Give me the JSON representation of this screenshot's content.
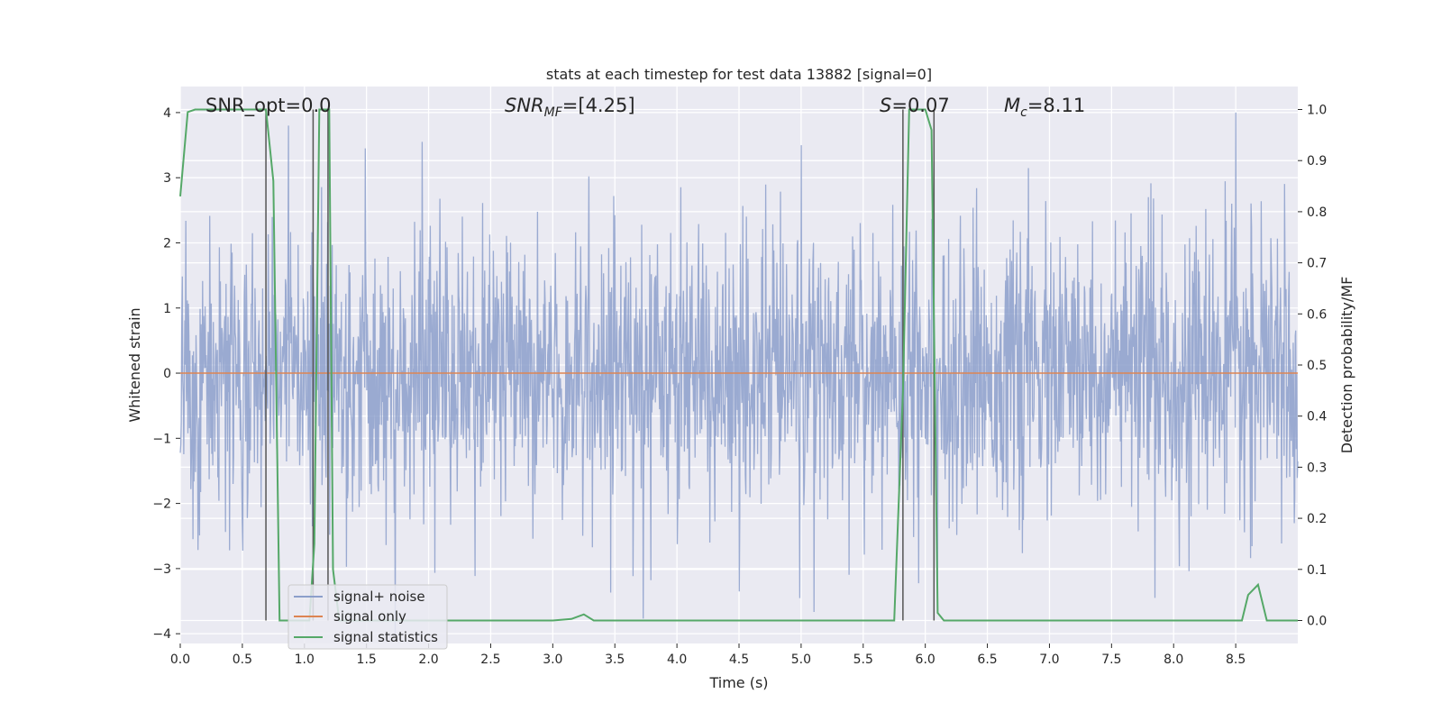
{
  "chart_data": {
    "type": "line",
    "title": "stats at each timestep for test data 13882 [signal=0]",
    "xlabel": "Time (s)",
    "ylabel": "Whitened strain",
    "y2label": "Detection probability/MF",
    "xlim": [
      0.0,
      9.0
    ],
    "ylim": [
      -4.15,
      4.4
    ],
    "y2lim": [
      -0.045,
      1.045
    ],
    "xticks": [
      0.0,
      0.5,
      1.0,
      1.5,
      2.0,
      2.5,
      3.0,
      3.5,
      4.0,
      4.5,
      5.0,
      5.5,
      6.0,
      6.5,
      7.0,
      7.5,
      8.0,
      8.5
    ],
    "xtick_labels": [
      "0.0",
      "0.5",
      "1.0",
      "1.5",
      "2.0",
      "2.5",
      "3.0",
      "3.5",
      "4.0",
      "4.5",
      "5.0",
      "5.5",
      "6.0",
      "6.5",
      "7.0",
      "7.5",
      "8.0",
      "8.5"
    ],
    "yticks": [
      4,
      3,
      2,
      1,
      0,
      -1,
      -2,
      -3,
      -4
    ],
    "ytick_labels": [
      "4",
      "3",
      "2",
      "1",
      "0",
      "−1",
      "−2",
      "−3",
      "−4"
    ],
    "y2ticks": [
      1.0,
      0.9,
      0.8,
      0.7,
      0.6,
      0.5,
      0.4,
      0.3,
      0.2,
      0.1,
      0.0
    ],
    "y2tick_labels": [
      "1.0",
      "0.9",
      "0.8",
      "0.7",
      "0.6",
      "0.5",
      "0.4",
      "0.3",
      "0.2",
      "0.1",
      "0.0"
    ],
    "grid": true,
    "legend_placement": "lower-left",
    "series": [
      {
        "name": "signal+ noise",
        "color": "#8c9fcb",
        "axis": "left",
        "description_values": {
          "t_start": 0.0,
          "t_end": 9.0,
          "typical_envelope": [
            -2.3,
            2.4
          ],
          "peaks": [
            [
              0.87,
              3.8
            ],
            [
              1.95,
              3.55
            ],
            [
              5.0,
              3.5
            ],
            [
              8.5,
              4.0
            ]
          ],
          "troughs": [
            [
              1.73,
              -4.0
            ],
            [
              4.5,
              -3.35
            ],
            [
              6.1,
              -3.65
            ],
            [
              7.85,
              -3.45
            ]
          ]
        }
      },
      {
        "name": "signal only",
        "color": "#dd8452",
        "axis": "left",
        "x": [
          0.0,
          9.0
        ],
        "y": [
          0.0,
          0.0
        ]
      },
      {
        "name": "signal statistics",
        "color": "#55a868",
        "axis": "right",
        "x": [
          0.0,
          0.06,
          0.12,
          0.2,
          0.3,
          0.5,
          0.65,
          0.69,
          0.75,
          0.8,
          0.88,
          1.0,
          1.04,
          1.08,
          1.12,
          1.15,
          1.2,
          1.23,
          1.28,
          1.35,
          1.5,
          2.0,
          2.5,
          3.0,
          3.15,
          3.25,
          3.33,
          3.5,
          4.0,
          4.5,
          5.0,
          5.5,
          5.75,
          5.82,
          5.87,
          5.9,
          6.0,
          6.05,
          6.1,
          6.15,
          6.2,
          6.5,
          7.0,
          7.5,
          8.0,
          8.55,
          8.6,
          8.68,
          8.75,
          8.8,
          8.9,
          9.0
        ],
        "y": [
          0.83,
          0.995,
          1.0,
          1.0,
          1.0,
          1.0,
          1.0,
          1.0,
          0.86,
          0.0,
          0.0,
          0.0,
          0.0,
          0.15,
          1.0,
          1.0,
          1.0,
          0.1,
          0.0,
          0.0,
          0.0,
          0.0,
          0.0,
          0.0,
          0.003,
          0.012,
          0.0,
          0.0,
          0.0,
          0.0,
          0.0,
          0.0,
          0.0,
          0.45,
          1.0,
          1.0,
          1.0,
          0.96,
          0.015,
          0.0,
          0.0,
          0.0,
          0.0,
          0.0,
          0.0,
          0.0,
          0.05,
          0.07,
          0.0,
          0.0,
          0.0,
          0.0
        ]
      }
    ],
    "vertical_markers": [
      0.69,
      1.07,
      1.19,
      5.82,
      6.07
    ],
    "annotations": {
      "snr_opt": "SNR_opt=0.0",
      "snr_mf_prefix": "SNR",
      "snr_mf_sub": "MF",
      "snr_mf_suffix": "=[4.25]",
      "s_prefix": "S",
      "s_suffix": "=0.07",
      "mc_prefix": "M",
      "mc_sub": "c",
      "mc_suffix": "=8.11"
    },
    "legend": [
      "signal+ noise",
      "signal only",
      "signal statistics"
    ]
  }
}
